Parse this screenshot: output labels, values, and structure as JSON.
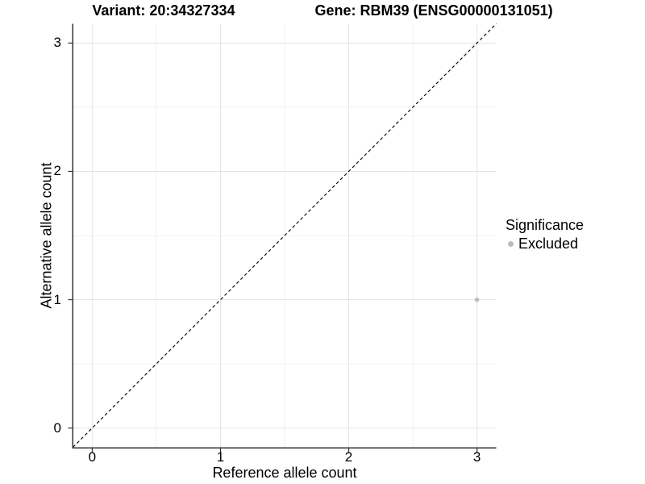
{
  "header": {
    "title_left": "Variant: 20:34327334",
    "title_right": "Gene: RBM39 (ENSG00000131051)"
  },
  "axes": {
    "x_label": "Reference allele count",
    "y_label": "Alternative allele count"
  },
  "legend": {
    "title": "Significance",
    "entries": [
      {
        "label": "Excluded",
        "color": "#bdbdbd"
      }
    ]
  },
  "chart_data": {
    "type": "scatter",
    "title": "Variant: 20:34327334 | Gene: RBM39 (ENSG00000131051)",
    "xlabel": "Reference allele count",
    "ylabel": "Alternative allele count",
    "xlim": [
      -0.15,
      3.15
    ],
    "ylim": [
      -0.15,
      3.15
    ],
    "x_ticks": [
      0,
      1,
      2,
      3
    ],
    "y_ticks": [
      0,
      1,
      2,
      3
    ],
    "x_minor_ticks": [
      0.5,
      1.5,
      2.5
    ],
    "y_minor_ticks": [
      0.5,
      1.5,
      2.5
    ],
    "grid": "major+minor",
    "legend_position": "right",
    "legend_title": "Significance",
    "reference_line": {
      "kind": "identity y=x",
      "style": "dashed",
      "color": "#000000"
    },
    "series": [
      {
        "name": "Excluded",
        "color": "#bdbdbd",
        "marker": "circle",
        "points": [
          [
            3,
            1
          ]
        ]
      }
    ]
  },
  "colors": {
    "background": "#ffffff",
    "axis_line": "#333333",
    "tick_mark": "#333333",
    "text": "#000000",
    "grid_major": "#e4e4e4",
    "grid_minor": "#f1f1f1",
    "point": "#bdbdbd",
    "reference_line": "#000000"
  }
}
